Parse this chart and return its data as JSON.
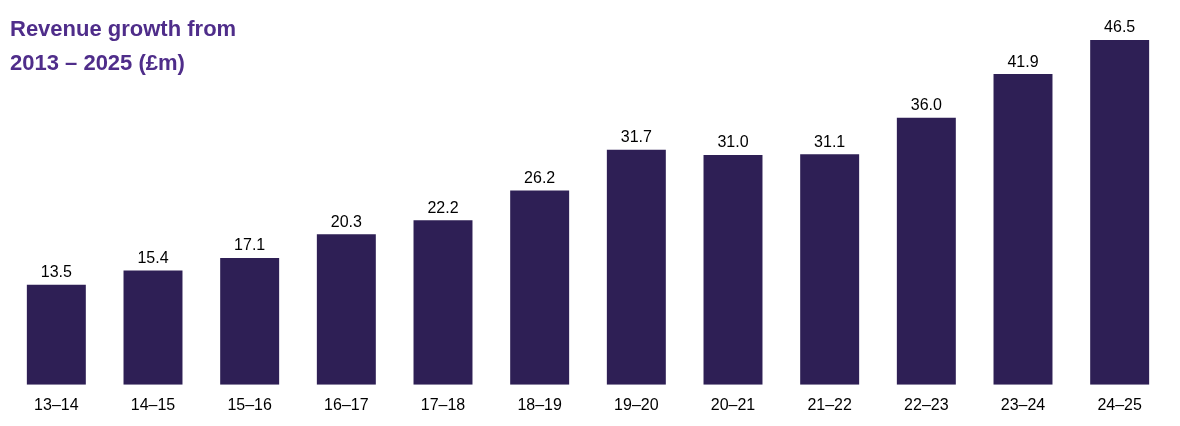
{
  "chart_data": {
    "type": "bar",
    "title": "Revenue growth from 2013 – 2025 (£m)",
    "categories": [
      "13–14",
      "14–15",
      "15–16",
      "16–17",
      "17–18",
      "18–19",
      "19–20",
      "20–21",
      "21–22",
      "22–23",
      "23–24",
      "24–25"
    ],
    "values": [
      13.5,
      15.4,
      17.1,
      20.3,
      22.2,
      26.2,
      31.7,
      31.0,
      31.1,
      36.0,
      41.9,
      46.5
    ],
    "value_labels": [
      "13.5",
      "15.4",
      "17.1",
      "20.3",
      "22.2",
      "26.2",
      "31.7",
      "31.0",
      "31.1",
      "36.0",
      "41.9",
      "46.5"
    ],
    "color": "#2e1f55",
    "grid": false,
    "legend": false
  }
}
